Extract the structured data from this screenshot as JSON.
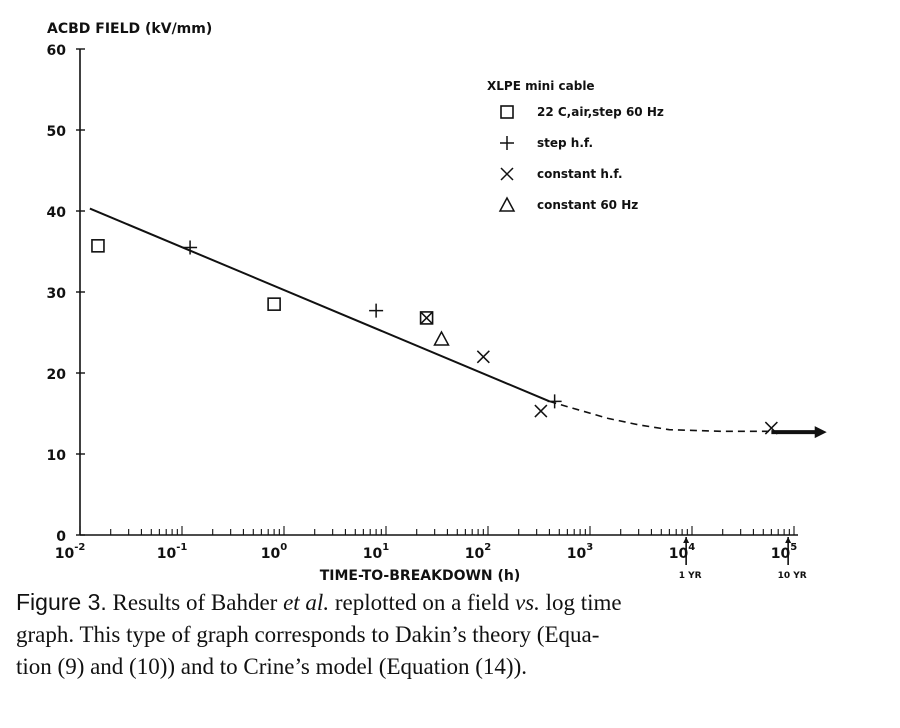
{
  "chart_data": {
    "type": "scatter",
    "ylabel": "ACBD FIELD (kV/mm)",
    "xlabel": "TIME-TO-BREAKDOWN (h)",
    "xscale": "log",
    "xlim": [
      0.01,
      100000
    ],
    "ylim": [
      0,
      60
    ],
    "yticks": [
      "0",
      "10",
      "20",
      "30",
      "40",
      "50",
      "60"
    ],
    "xtick_labels": [
      {
        "base": "10",
        "exp": "-2",
        "x": 0.01
      },
      {
        "base": "10",
        "exp": "-1",
        "x": 0.1
      },
      {
        "base": "10",
        "exp": "0",
        "x": 1
      },
      {
        "base": "10",
        "exp": "1",
        "x": 10
      },
      {
        "base": "10",
        "exp": "2",
        "x": 100
      },
      {
        "base": "10",
        "exp": "3",
        "x": 1000
      },
      {
        "base": "10",
        "exp": "4",
        "x": 10000
      },
      {
        "base": "10",
        "exp": "5",
        "x": 100000
      }
    ],
    "time_markers": [
      {
        "label": "1 YR",
        "x": 8760
      },
      {
        "label": "10 YR",
        "x": 87600
      }
    ],
    "legend": {
      "title": "XLPE mini cable",
      "position": "top-right",
      "entries": [
        {
          "marker": "square",
          "label": "22 C,air,step 60 Hz"
        },
        {
          "marker": "plus",
          "label": "step h.f."
        },
        {
          "marker": "x",
          "label": "constant h.f."
        },
        {
          "marker": "triangle",
          "label": "constant 60 Hz"
        }
      ]
    },
    "series": [
      {
        "name": "22 C,air,step 60 Hz",
        "marker": "square",
        "points": [
          [
            0.015,
            35.7
          ],
          [
            0.8,
            28.5
          ],
          [
            25,
            26.8
          ]
        ]
      },
      {
        "name": "step h.f.",
        "marker": "plus",
        "points": [
          [
            0.12,
            35.5
          ],
          [
            8,
            27.7
          ],
          [
            450,
            16.5
          ]
        ]
      },
      {
        "name": "constant h.f.",
        "marker": "x",
        "points": [
          [
            25,
            26.8
          ],
          [
            90,
            22.0
          ],
          [
            330,
            15.3
          ],
          [
            60000,
            13.2
          ]
        ]
      },
      {
        "name": "constant 60 Hz",
        "marker": "triangle",
        "points": [
          [
            35,
            24.2
          ]
        ]
      }
    ],
    "fit_line": {
      "style": "solid",
      "points": [
        [
          0.0125,
          40.3
        ],
        [
          400,
          16.5
        ]
      ]
    },
    "extrapolation": {
      "style": "dashed",
      "points": [
        [
          400,
          16.5
        ],
        [
          700,
          15.6
        ],
        [
          1500,
          14.4
        ],
        [
          3000,
          13.6
        ],
        [
          6000,
          13.0
        ],
        [
          20000,
          12.8
        ],
        [
          60000,
          12.8
        ],
        [
          100000,
          12.7
        ]
      ]
    },
    "arrow": {
      "from": 60000,
      "to": 200000,
      "y": 12.7
    }
  },
  "caption": {
    "label": "Figure 3.",
    "line1_a": "Results of Bahder ",
    "line1_b": "et al.",
    "line1_c": " replotted on a field ",
    "line1_d": "vs.",
    "line1_e": " log time",
    "line2": "graph.  This type of graph corresponds to Dakin’s theory (Equa-",
    "line3": "tion (9) and (10)) and to Crine’s model (Equation (14))."
  }
}
